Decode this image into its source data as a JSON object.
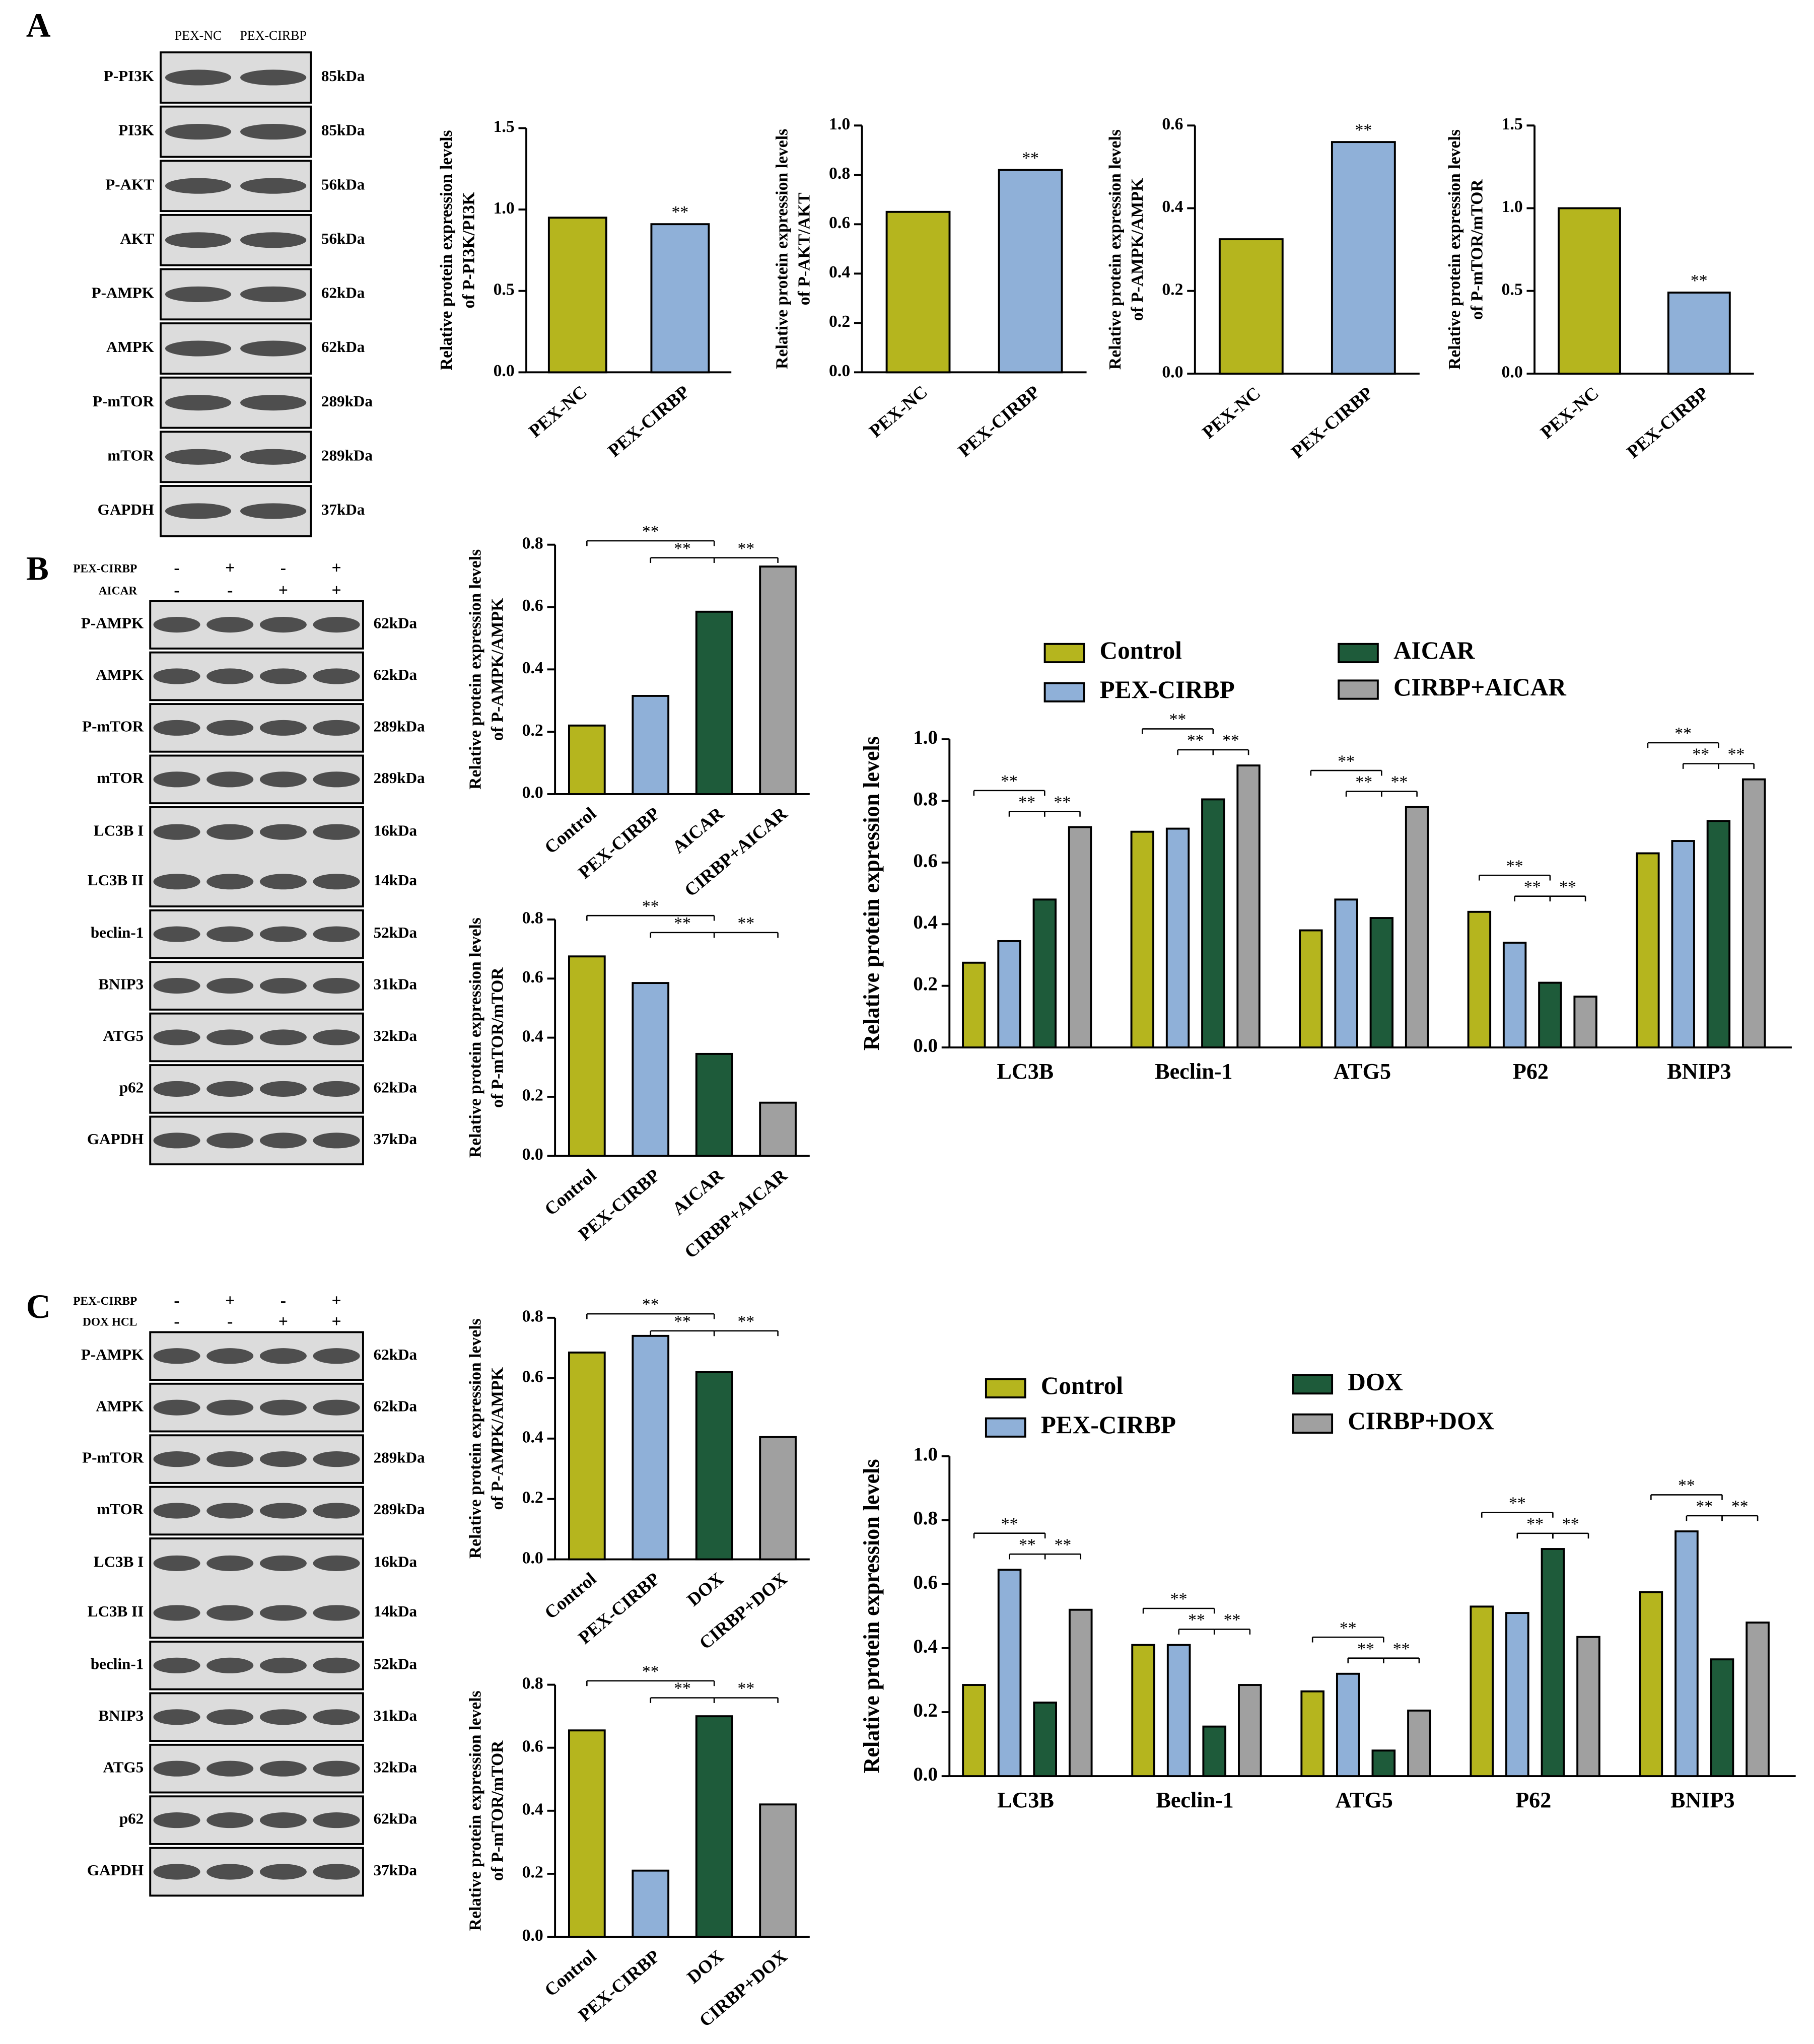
{
  "panel_labels": [
    "A",
    "B",
    "C"
  ],
  "blots": [
    {
      "lanes": [
        "PEX-NC",
        "PEX-CIRBP"
      ],
      "rows": [
        {
          "labels": [
            "P-PI3K"
          ],
          "kda": [
            "85kDa"
          ]
        },
        {
          "labels": [
            "PI3K"
          ],
          "kda": [
            "85kDa"
          ]
        },
        {
          "labels": [
            "P-AKT"
          ],
          "kda": [
            "56kDa"
          ]
        },
        {
          "labels": [
            "AKT"
          ],
          "kda": [
            "56kDa"
          ]
        },
        {
          "labels": [
            "P-AMPK"
          ],
          "kda": [
            "62kDa"
          ]
        },
        {
          "labels": [
            "AMPK"
          ],
          "kda": [
            "62kDa"
          ]
        },
        {
          "labels": [
            "P-mTOR"
          ],
          "kda": [
            "289kDa"
          ]
        },
        {
          "labels": [
            "mTOR"
          ],
          "kda": [
            "289kDa"
          ]
        },
        {
          "labels": [
            "GAPDH"
          ],
          "kda": [
            "37kDa"
          ]
        }
      ]
    },
    {
      "conditions": [
        {
          "name": "PEX-CIRBP",
          "signs": [
            "-",
            "+",
            "-",
            "+"
          ]
        },
        {
          "name": "AICAR",
          "signs": [
            "-",
            "-",
            "+",
            "+"
          ]
        }
      ],
      "rows": [
        {
          "labels": [
            "P-AMPK"
          ],
          "kda": [
            "62kDa"
          ]
        },
        {
          "labels": [
            "AMPK"
          ],
          "kda": [
            "62kDa"
          ]
        },
        {
          "labels": [
            "P-mTOR"
          ],
          "kda": [
            "289kDa"
          ]
        },
        {
          "labels": [
            "mTOR"
          ],
          "kda": [
            "289kDa"
          ]
        },
        {
          "labels": [
            "LC3B I",
            "LC3B II"
          ],
          "kda": [
            "16kDa",
            "14kDa"
          ]
        },
        {
          "labels": [
            "beclin-1"
          ],
          "kda": [
            "52kDa"
          ]
        },
        {
          "labels": [
            "BNIP3"
          ],
          "kda": [
            "31kDa"
          ]
        },
        {
          "labels": [
            "ATG5"
          ],
          "kda": [
            "32kDa"
          ]
        },
        {
          "labels": [
            "p62"
          ],
          "kda": [
            "62kDa"
          ]
        },
        {
          "labels": [
            "GAPDH"
          ],
          "kda": [
            "37kDa"
          ]
        }
      ]
    },
    {
      "conditions": [
        {
          "name": "PEX-CIRBP",
          "signs": [
            "-",
            "+",
            "-",
            "+"
          ]
        },
        {
          "name": "DOX HCL",
          "signs": [
            "-",
            "-",
            "+",
            "+"
          ]
        }
      ],
      "rows": [
        {
          "labels": [
            "P-AMPK"
          ],
          "kda": [
            "62kDa"
          ]
        },
        {
          "labels": [
            "AMPK"
          ],
          "kda": [
            "62kDa"
          ]
        },
        {
          "labels": [
            "P-mTOR"
          ],
          "kda": [
            "289kDa"
          ]
        },
        {
          "labels": [
            "mTOR"
          ],
          "kda": [
            "289kDa"
          ]
        },
        {
          "labels": [
            "LC3B I",
            "LC3B II"
          ],
          "kda": [
            "16kDa",
            "14kDa"
          ]
        },
        {
          "labels": [
            "beclin-1"
          ],
          "kda": [
            "52kDa"
          ]
        },
        {
          "labels": [
            "BNIP3"
          ],
          "kda": [
            "31kDa"
          ]
        },
        {
          "labels": [
            "ATG5"
          ],
          "kda": [
            "32kDa"
          ]
        },
        {
          "labels": [
            "p62"
          ],
          "kda": [
            "62kDa"
          ]
        },
        {
          "labels": [
            "GAPDH"
          ],
          "kda": [
            "37kDa"
          ]
        }
      ]
    }
  ],
  "chart_data": [
    {
      "type": "bar",
      "y_label": [
        "Relative protein expression levels",
        "of P-PI3K/PI3K"
      ],
      "categories": [
        "PEX-NC",
        "PEX-CIRBP"
      ],
      "values": [
        0.95,
        0.91
      ],
      "colors": [
        "#b5b51e",
        "#8fb0d8"
      ],
      "ylim": [
        0,
        1.5
      ],
      "yticks": [
        {
          "value": 0,
          "label": "0.0"
        },
        0.5,
        {
          "value": 1,
          "label": "1.0"
        },
        1.5
      ],
      "annotations": [
        {
          "label": "**",
          "between": [
            "PEX-CIRBP"
          ]
        }
      ]
    },
    {
      "type": "bar",
      "y_label": [
        "Relative protein expression levels",
        "of P-AKT/AKT"
      ],
      "categories": [
        "PEX-NC",
        "PEX-CIRBP"
      ],
      "values": [
        0.65,
        0.82
      ],
      "colors": [
        "#b5b51e",
        "#8fb0d8"
      ],
      "ylim": [
        0,
        1
      ],
      "yticks": [
        {
          "value": 0,
          "label": "0.0"
        },
        0.2,
        0.4,
        0.6,
        0.8,
        {
          "value": 1,
          "label": "1.0"
        }
      ],
      "annotations": [
        {
          "label": "**",
          "between": [
            "PEX-CIRBP"
          ]
        }
      ]
    },
    {
      "type": "bar",
      "y_label": [
        "Relative protein expression levels",
        "of P-AMPK/AMPK"
      ],
      "categories": [
        "PEX-NC",
        "PEX-CIRBP"
      ],
      "values": [
        0.325,
        0.56
      ],
      "colors": [
        "#b5b51e",
        "#8fb0d8"
      ],
      "ylim": [
        0,
        0.6
      ],
      "yticks": [
        {
          "value": 0,
          "label": "0.0"
        },
        0.2,
        0.4,
        0.6
      ],
      "annotations": [
        {
          "label": "**",
          "between": [
            "PEX-CIRBP"
          ]
        }
      ]
    },
    {
      "type": "bar",
      "y_label": [
        "Relative protein expression levels",
        "of P-mTOR/mTOR"
      ],
      "categories": [
        "PEX-NC",
        "PEX-CIRBP"
      ],
      "values": [
        1.0,
        0.49
      ],
      "colors": [
        "#b5b51e",
        "#8fb0d8"
      ],
      "ylim": [
        0,
        1.5
      ],
      "yticks": [
        {
          "value": 0,
          "label": "0.0"
        },
        0.5,
        {
          "value": 1,
          "label": "1.0"
        },
        1.5
      ],
      "annotations": [
        {
          "label": "**",
          "between": [
            "PEX-CIRBP"
          ]
        }
      ]
    },
    {
      "type": "bar",
      "y_label": [
        "Relative protein expression levels",
        "of P-AMPK/AMPK"
      ],
      "categories": [
        "Control",
        "PEX-CIRBP",
        "AICAR",
        "CIRBP+AICAR"
      ],
      "values": [
        0.22,
        0.315,
        0.585,
        0.73
      ],
      "colors": [
        "#b5b51e",
        "#8fb0d8",
        "#1e5b3a",
        "#a0a0a0"
      ],
      "ylim": [
        0,
        0.8
      ],
      "yticks": [
        {
          "value": 0,
          "label": "0.0"
        },
        0.2,
        0.4,
        0.6,
        0.8
      ],
      "annotations": [
        {
          "label": "**",
          "between": [
            "Control",
            "AICAR"
          ]
        },
        {
          "label": "**",
          "between": [
            "PEX-CIRBP",
            "AICAR"
          ]
        },
        {
          "label": "**",
          "between": [
            "AICAR",
            "CIRBP+AICAR"
          ]
        }
      ]
    },
    {
      "type": "bar",
      "y_label": [
        "Relative protein expression levels",
        "of P-mTOR/mTOR"
      ],
      "categories": [
        "Control",
        "PEX-CIRBP",
        "AICAR",
        "CIRBP+AICAR"
      ],
      "values": [
        0.675,
        0.585,
        0.345,
        0.18
      ],
      "colors": [
        "#b5b51e",
        "#8fb0d8",
        "#1e5b3a",
        "#a0a0a0"
      ],
      "ylim": [
        0,
        0.8
      ],
      "yticks": [
        {
          "value": 0,
          "label": "0.0"
        },
        0.2,
        0.4,
        0.6,
        0.8
      ],
      "annotations": [
        {
          "label": "**",
          "between": [
            "Control",
            "AICAR"
          ]
        },
        {
          "label": "**",
          "between": [
            "PEX-CIRBP",
            "AICAR"
          ]
        },
        {
          "label": "**",
          "between": [
            "AICAR",
            "CIRBP+AICAR"
          ]
        }
      ]
    },
    {
      "type": "grouped_bar",
      "y_label": "Relative protein expression levels",
      "categories": [
        "LC3B",
        "Beclin-1",
        "ATG5",
        "P62",
        "BNIP3"
      ],
      "series": [
        {
          "name": "Control",
          "color": "#b5b51e",
          "values": [
            0.275,
            0.7,
            0.38,
            0.44,
            0.63
          ]
        },
        {
          "name": "PEX-CIRBP",
          "color": "#8fb0d8",
          "values": [
            0.345,
            0.71,
            0.48,
            0.34,
            0.67
          ]
        },
        {
          "name": "AICAR",
          "color": "#1e5b3a",
          "values": [
            0.48,
            0.805,
            0.42,
            0.21,
            0.735
          ]
        },
        {
          "name": "CIRBP+AICAR",
          "color": "#a0a0a0",
          "values": [
            0.715,
            0.915,
            0.78,
            0.165,
            0.87
          ]
        }
      ],
      "ylim": [
        0,
        1
      ],
      "yticks": [
        {
          "value": 0,
          "label": "0.0"
        },
        0.2,
        0.4,
        0.6,
        0.8,
        {
          "value": 1,
          "label": "1.0"
        }
      ],
      "annotations": [
        {
          "label": "**",
          "category": "LC3B",
          "between": [
            "Control",
            "AICAR"
          ]
        },
        {
          "label": "**",
          "category": "LC3B",
          "between": [
            "PEX-CIRBP",
            "AICAR"
          ]
        },
        {
          "label": "**",
          "category": "LC3B",
          "between": [
            "AICAR",
            "CIRBP+AICAR"
          ]
        },
        {
          "label": "**",
          "category": "Beclin-1",
          "between": [
            "Control",
            "AICAR"
          ]
        },
        {
          "label": "**",
          "category": "Beclin-1",
          "between": [
            "PEX-CIRBP",
            "AICAR"
          ]
        },
        {
          "label": "**",
          "category": "Beclin-1",
          "between": [
            "AICAR",
            "CIRBP+AICAR"
          ]
        },
        {
          "label": "**",
          "category": "ATG5",
          "between": [
            "Control",
            "AICAR"
          ]
        },
        {
          "label": "**",
          "category": "ATG5",
          "between": [
            "PEX-CIRBP",
            "AICAR"
          ]
        },
        {
          "label": "**",
          "category": "ATG5",
          "between": [
            "AICAR",
            "CIRBP+AICAR"
          ]
        },
        {
          "label": "**",
          "category": "P62",
          "between": [
            "Control",
            "AICAR"
          ]
        },
        {
          "label": "**",
          "category": "P62",
          "between": [
            "PEX-CIRBP",
            "AICAR"
          ]
        },
        {
          "label": "**",
          "category": "P62",
          "between": [
            "AICAR",
            "CIRBP+AICAR"
          ]
        },
        {
          "label": "**",
          "category": "BNIP3",
          "between": [
            "Control",
            "AICAR"
          ]
        },
        {
          "label": "**",
          "category": "BNIP3",
          "between": [
            "PEX-CIRBP",
            "AICAR"
          ]
        },
        {
          "label": "**",
          "category": "BNIP3",
          "between": [
            "AICAR",
            "CIRBP+AICAR"
          ]
        }
      ]
    },
    {
      "type": "bar",
      "y_label": [
        "Relative protein expression levels",
        "of P-AMPK/AMPK"
      ],
      "categories": [
        "Control",
        "PEX-CIRBP",
        "DOX",
        "CIRBP+DOX"
      ],
      "values": [
        0.685,
        0.74,
        0.62,
        0.405
      ],
      "colors": [
        "#b5b51e",
        "#8fb0d8",
        "#1e5b3a",
        "#a0a0a0"
      ],
      "ylim": [
        0,
        0.8
      ],
      "yticks": [
        {
          "value": 0,
          "label": "0.0"
        },
        0.2,
        0.4,
        0.6,
        0.8
      ],
      "annotations": [
        {
          "label": "**",
          "between": [
            "Control",
            "DOX"
          ]
        },
        {
          "label": "**",
          "between": [
            "PEX-CIRBP",
            "DOX"
          ]
        },
        {
          "label": "**",
          "between": [
            "DOX",
            "CIRBP+DOX"
          ]
        }
      ]
    },
    {
      "type": "bar",
      "y_label": [
        "Relative protein expression levels",
        "of P-mTOR/mTOR"
      ],
      "categories": [
        "Control",
        "PEX-CIRBP",
        "DOX",
        "CIRBP+DOX"
      ],
      "values": [
        0.655,
        0.21,
        0.7,
        0.42
      ],
      "colors": [
        "#b5b51e",
        "#8fb0d8",
        "#1e5b3a",
        "#a0a0a0"
      ],
      "ylim": [
        0,
        0.8
      ],
      "yticks": [
        {
          "value": 0,
          "label": "0.0"
        },
        0.2,
        0.4,
        0.6,
        0.8
      ],
      "annotations": [
        {
          "label": "**",
          "between": [
            "Control",
            "DOX"
          ]
        },
        {
          "label": "**",
          "between": [
            "PEX-CIRBP",
            "DOX"
          ]
        },
        {
          "label": "**",
          "between": [
            "DOX",
            "CIRBP+DOX"
          ]
        }
      ]
    },
    {
      "type": "grouped_bar",
      "y_label": "Relative protein expression levels",
      "categories": [
        "LC3B",
        "Beclin-1",
        "ATG5",
        "P62",
        "BNIP3"
      ],
      "series": [
        {
          "name": "Control",
          "color": "#b5b51e",
          "values": [
            0.285,
            0.41,
            0.265,
            0.53,
            0.575
          ]
        },
        {
          "name": "PEX-CIRBP",
          "color": "#8fb0d8",
          "values": [
            0.645,
            0.41,
            0.32,
            0.51,
            0.765
          ]
        },
        {
          "name": "DOX",
          "color": "#1e5b3a",
          "values": [
            0.23,
            0.155,
            0.08,
            0.71,
            0.365
          ]
        },
        {
          "name": "CIRBP+DOX",
          "color": "#a0a0a0",
          "values": [
            0.52,
            0.285,
            0.205,
            0.435,
            0.48
          ]
        }
      ],
      "ylim": [
        0,
        1
      ],
      "yticks": [
        {
          "value": 0,
          "label": "0.0"
        },
        0.2,
        0.4,
        0.6,
        0.8,
        {
          "value": 1,
          "label": "1.0"
        }
      ],
      "annotations": [
        {
          "label": "**",
          "category": "LC3B",
          "between": [
            "Control",
            "DOX"
          ]
        },
        {
          "label": "**",
          "category": "LC3B",
          "between": [
            "PEX-CIRBP",
            "DOX"
          ]
        },
        {
          "label": "**",
          "category": "LC3B",
          "between": [
            "DOX",
            "CIRBP+DOX"
          ]
        },
        {
          "label": "**",
          "category": "Beclin-1",
          "between": [
            "Control",
            "DOX"
          ]
        },
        {
          "label": "**",
          "category": "Beclin-1",
          "between": [
            "PEX-CIRBP",
            "DOX"
          ]
        },
        {
          "label": "**",
          "category": "Beclin-1",
          "between": [
            "DOX",
            "CIRBP+DOX"
          ]
        },
        {
          "label": "**",
          "category": "ATG5",
          "between": [
            "Control",
            "DOX"
          ]
        },
        {
          "label": "**",
          "category": "ATG5",
          "between": [
            "PEX-CIRBP",
            "DOX"
          ]
        },
        {
          "label": "**",
          "category": "ATG5",
          "between": [
            "DOX",
            "CIRBP+DOX"
          ]
        },
        {
          "label": "**",
          "category": "P62",
          "between": [
            "Control",
            "DOX"
          ]
        },
        {
          "label": "**",
          "category": "P62",
          "between": [
            "PEX-CIRBP",
            "DOX"
          ]
        },
        {
          "label": "**",
          "category": "P62",
          "between": [
            "DOX",
            "CIRBP+DOX"
          ]
        },
        {
          "label": "**",
          "category": "BNIP3",
          "between": [
            "Control",
            "DOX"
          ]
        },
        {
          "label": "**",
          "category": "BNIP3",
          "between": [
            "PEX-CIRBP",
            "DOX"
          ]
        },
        {
          "label": "**",
          "category": "BNIP3",
          "between": [
            "DOX",
            "CIRBP+DOX"
          ]
        }
      ]
    }
  ]
}
